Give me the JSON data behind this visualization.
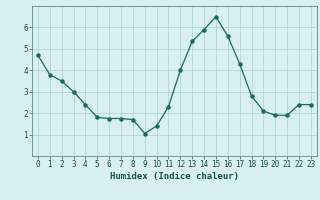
{
  "x": [
    0,
    1,
    2,
    3,
    4,
    5,
    6,
    7,
    8,
    9,
    10,
    11,
    12,
    13,
    14,
    15,
    16,
    17,
    18,
    19,
    20,
    21,
    22,
    23
  ],
  "y": [
    4.7,
    3.8,
    3.5,
    3.0,
    2.4,
    1.8,
    1.75,
    1.75,
    1.7,
    1.05,
    1.4,
    2.3,
    4.0,
    5.35,
    5.9,
    6.5,
    5.6,
    4.3,
    2.8,
    2.1,
    1.9,
    1.9,
    2.4,
    2.4
  ],
  "line_color": "#1a6b5a",
  "marker": "o",
  "marker_size": 2.2,
  "bg_color": "#d8f0f0",
  "grid_color": "#aecece",
  "xlabel": "Humidex (Indice chaleur)",
  "ylim": [
    0,
    7
  ],
  "xlim": [
    -0.5,
    23.5
  ],
  "yticks": [
    1,
    2,
    3,
    4,
    5,
    6
  ],
  "xticks": [
    0,
    1,
    2,
    3,
    4,
    5,
    6,
    7,
    8,
    9,
    10,
    11,
    12,
    13,
    14,
    15,
    16,
    17,
    18,
    19,
    20,
    21,
    22,
    23
  ],
  "xlabel_fontsize": 6.5,
  "tick_fontsize": 5.5,
  "line_width": 0.9
}
